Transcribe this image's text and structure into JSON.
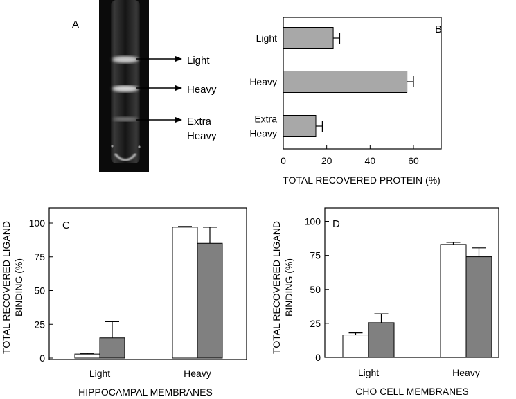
{
  "panels": {
    "A": {
      "letter": "A",
      "band_labels": [
        {
          "lines": [
            "Light"
          ]
        },
        {
          "lines": [
            "Heavy"
          ]
        },
        {
          "lines": [
            "Extra",
            "Heavy"
          ]
        }
      ]
    }
  },
  "chart_data": [
    {
      "panel": "B",
      "type": "bar",
      "orientation": "horizontal",
      "categories": [
        [
          "Light"
        ],
        [
          "Heavy"
        ],
        [
          "Extra",
          "Heavy"
        ]
      ],
      "values": [
        23,
        57,
        15
      ],
      "errors": [
        3,
        3,
        3
      ],
      "xlabel": "TOTAL RECOVERED PROTEIN (%)",
      "xlim": [
        0,
        70
      ],
      "xticks": [
        0,
        20,
        40,
        60
      ],
      "colors": {
        "bar": "#a8a8a8"
      }
    },
    {
      "panel": "C",
      "type": "bar",
      "categories": [
        "Light",
        "Heavy"
      ],
      "series": [
        {
          "values": [
            3,
            97
          ],
          "errors": [
            0.5,
            0.5
          ],
          "color": "#ffffff"
        },
        {
          "values": [
            15,
            85
          ],
          "errors": [
            12,
            12
          ],
          "color": "#808080"
        }
      ],
      "ylabel": [
        "TOTAL RECOVERED LIGAND",
        "BINDING (%)"
      ],
      "xlabel": "HIPPOCAMPAL MEMBRANES",
      "ylim": [
        0,
        110
      ],
      "yticks": [
        0,
        25,
        50,
        75,
        100
      ]
    },
    {
      "panel": "D",
      "type": "bar",
      "categories": [
        "Light",
        "Heavy"
      ],
      "series": [
        {
          "values": [
            16.5,
            83
          ],
          "errors": [
            1.5,
            1.5
          ],
          "color": "#ffffff"
        },
        {
          "values": [
            25.5,
            74
          ],
          "errors": [
            6.5,
            6.5
          ],
          "color": "#808080"
        }
      ],
      "ylabel": [
        "TOTAL RECOVERED LIGAND",
        "BINDING (%)"
      ],
      "xlabel": "CHO CELL MEMBRANES",
      "ylim": [
        0,
        110
      ],
      "yticks": [
        0,
        25,
        50,
        75,
        100
      ]
    }
  ]
}
